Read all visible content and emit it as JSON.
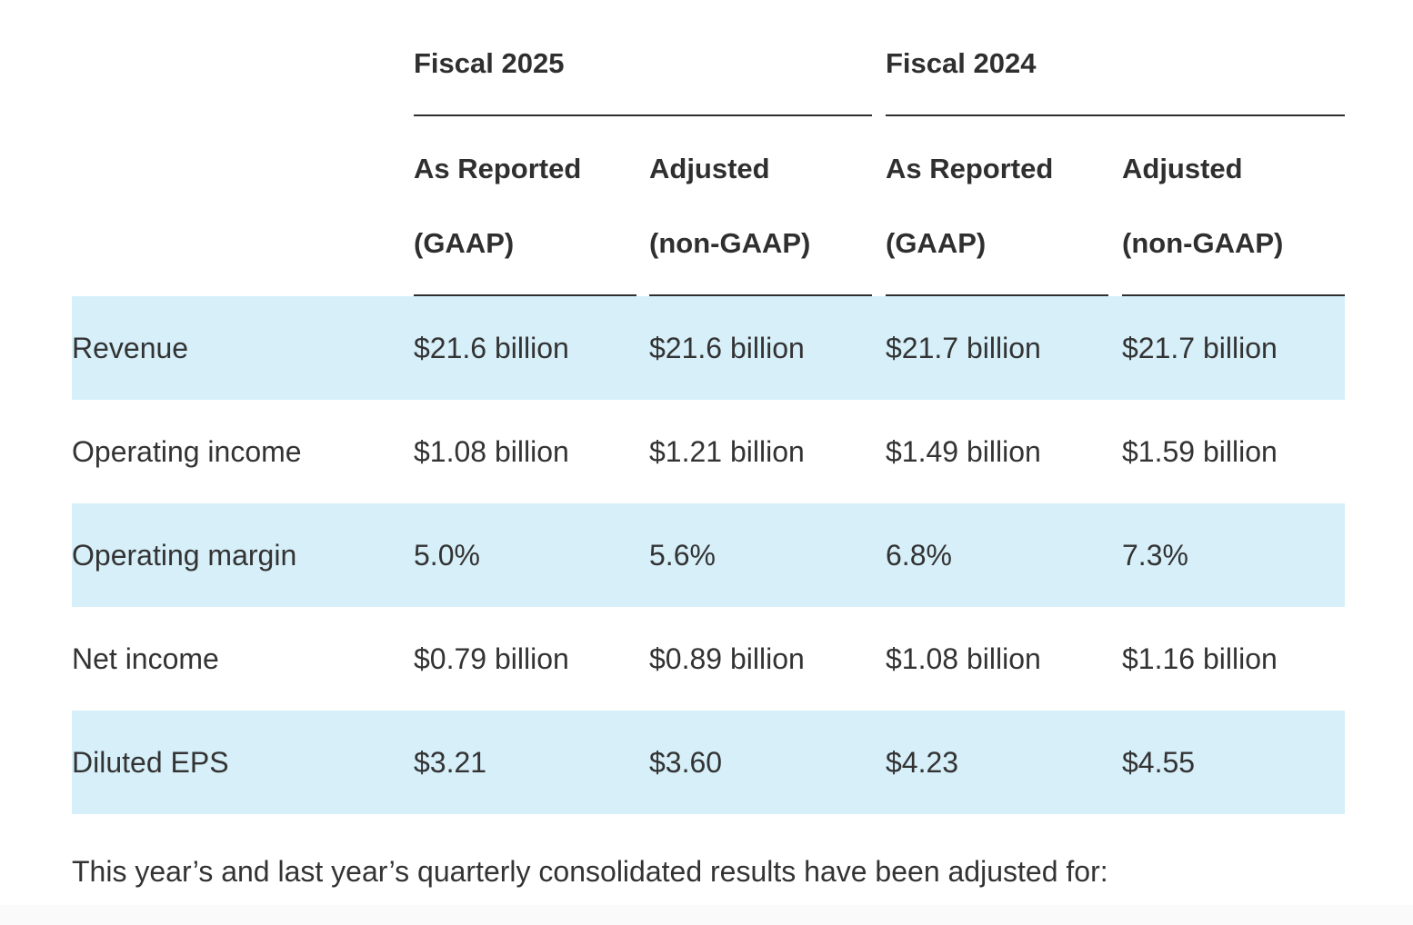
{
  "table": {
    "group_headers": [
      "Fiscal 2025",
      "Fiscal 2024"
    ],
    "sub_headers": [
      {
        "line1": "As Reported",
        "line2": "(GAAP)"
      },
      {
        "line1": "Adjusted",
        "line2": "(non-GAAP)"
      },
      {
        "line1": "As Reported",
        "line2": "(GAAP)"
      },
      {
        "line1": "Adjusted",
        "line2": "(non-GAAP)"
      }
    ],
    "rows": [
      {
        "label": "Revenue",
        "values": [
          "$21.6 billion",
          "$21.6 billion",
          "$21.7 billion",
          "$21.7 billion"
        ]
      },
      {
        "label": "Operating income",
        "values": [
          "$1.08 billion",
          "$1.21 billion",
          "$1.49 billion",
          "$1.59 billion"
        ]
      },
      {
        "label": "Operating margin",
        "values": [
          "5.0%",
          "5.6%",
          "6.8%",
          "7.3%"
        ]
      },
      {
        "label": "Net income",
        "values": [
          "$0.79 billion",
          "$0.89 billion",
          "$1.08 billion",
          "$1.16 billion"
        ]
      },
      {
        "label": "Diluted EPS",
        "values": [
          "$3.21",
          "$3.60",
          "$4.23",
          "$4.55"
        ]
      }
    ]
  },
  "footnote": "This year’s and last year’s quarterly consolidated results have been adjusted for:",
  "colors": {
    "row_shade": "#d6eff9",
    "text": "#333333",
    "rule": "#2f2f2f"
  }
}
